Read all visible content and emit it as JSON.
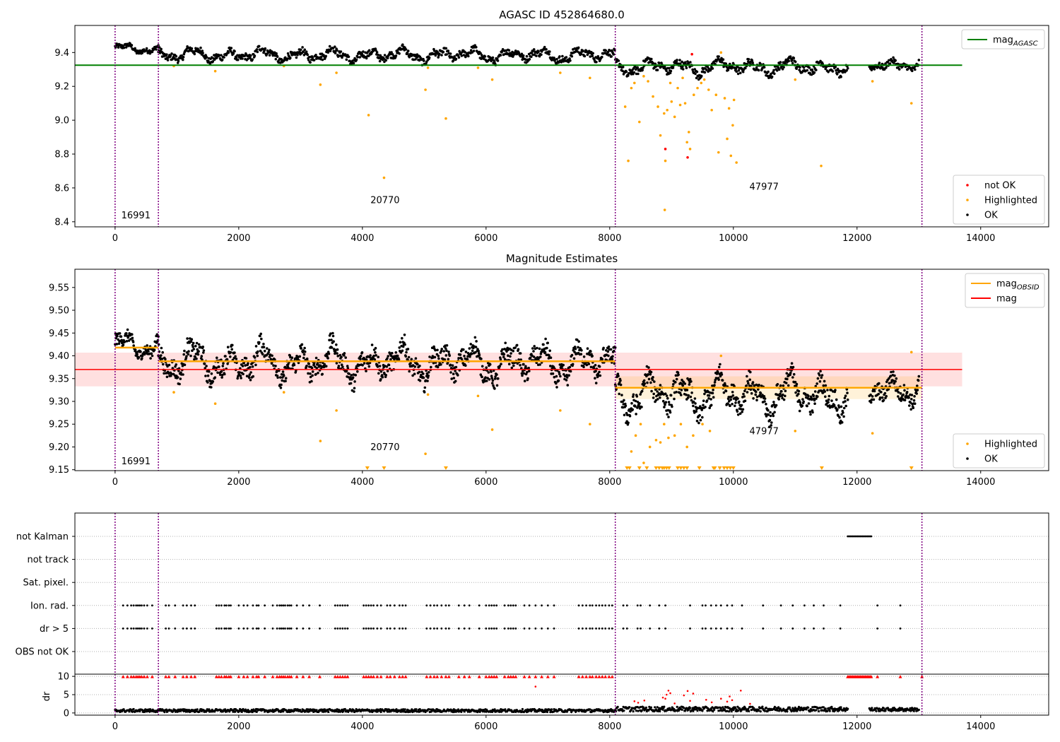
{
  "chart_data": [
    {
      "type": "scatter",
      "title": "AGASC ID 452864680.0",
      "xlim": [
        -650,
        15100
      ],
      "ylim": [
        8.37,
        9.56
      ],
      "xticks": [
        0,
        2000,
        4000,
        6000,
        8000,
        10000,
        12000,
        14000
      ],
      "yticks": [
        8.4,
        8.6,
        8.8,
        9.0,
        9.2,
        9.4
      ],
      "obs_boundaries": [
        0,
        700,
        8090,
        13050
      ],
      "obsid_labels": [
        {
          "text": "16991",
          "x": 100,
          "y": 8.42
        },
        {
          "text": "20770",
          "x": 4130,
          "y": 8.51
        },
        {
          "text": "47977",
          "x": 10260,
          "y": 8.59
        }
      ],
      "hlines": [
        {
          "name": "mag$_{AGASC}$",
          "y": 9.325,
          "x0": -650,
          "x1": 13700,
          "color": "#008000"
        }
      ],
      "ok_segments": [
        {
          "x0": 0,
          "x1": 700,
          "center": 9.42,
          "amp": 0.03
        },
        {
          "x0": 700,
          "x1": 8090,
          "center": 9.385,
          "amp": 0.045
        },
        {
          "x0": 8090,
          "x1": 11850,
          "center": 9.315,
          "amp": 0.05
        },
        {
          "x0": 12200,
          "x1": 13000,
          "center": 9.33,
          "amp": 0.04
        }
      ],
      "highlighted": [
        {
          "x": 950,
          "y": 9.32
        },
        {
          "x": 1620,
          "y": 9.29
        },
        {
          "x": 2730,
          "y": 9.32
        },
        {
          "x": 3320,
          "y": 9.21
        },
        {
          "x": 3580,
          "y": 9.28
        },
        {
          "x": 4100,
          "y": 9.03
        },
        {
          "x": 4350,
          "y": 8.66
        },
        {
          "x": 5020,
          "y": 9.18
        },
        {
          "x": 5060,
          "y": 9.31
        },
        {
          "x": 5350,
          "y": 9.01
        },
        {
          "x": 5870,
          "y": 9.31
        },
        {
          "x": 6100,
          "y": 9.24
        },
        {
          "x": 7200,
          "y": 9.28
        },
        {
          "x": 7680,
          "y": 9.25
        },
        {
          "x": 8250,
          "y": 9.08
        },
        {
          "x": 8300,
          "y": 8.76
        },
        {
          "x": 8350,
          "y": 9.19
        },
        {
          "x": 8400,
          "y": 9.22
        },
        {
          "x": 8480,
          "y": 8.99
        },
        {
          "x": 8550,
          "y": 9.26
        },
        {
          "x": 8620,
          "y": 9.23
        },
        {
          "x": 8700,
          "y": 9.14
        },
        {
          "x": 8780,
          "y": 9.08
        },
        {
          "x": 8820,
          "y": 8.91
        },
        {
          "x": 8880,
          "y": 9.04
        },
        {
          "x": 8900,
          "y": 8.76
        },
        {
          "x": 8930,
          "y": 9.06
        },
        {
          "x": 8980,
          "y": 9.22
        },
        {
          "x": 9000,
          "y": 9.11
        },
        {
          "x": 9050,
          "y": 9.02
        },
        {
          "x": 9100,
          "y": 9.19
        },
        {
          "x": 9140,
          "y": 9.09
        },
        {
          "x": 9180,
          "y": 9.25
        },
        {
          "x": 9220,
          "y": 9.1
        },
        {
          "x": 9250,
          "y": 8.87
        },
        {
          "x": 9280,
          "y": 8.93
        },
        {
          "x": 9300,
          "y": 8.83
        },
        {
          "x": 9360,
          "y": 9.15
        },
        {
          "x": 9420,
          "y": 9.19
        },
        {
          "x": 9480,
          "y": 9.22
        },
        {
          "x": 9530,
          "y": 9.24
        },
        {
          "x": 9600,
          "y": 9.18
        },
        {
          "x": 9650,
          "y": 9.06
        },
        {
          "x": 9720,
          "y": 9.15
        },
        {
          "x": 9760,
          "y": 8.81
        },
        {
          "x": 9800,
          "y": 9.4
        },
        {
          "x": 9860,
          "y": 9.13
        },
        {
          "x": 9900,
          "y": 8.89
        },
        {
          "x": 9930,
          "y": 9.07
        },
        {
          "x": 9960,
          "y": 8.79
        },
        {
          "x": 9990,
          "y": 8.97
        },
        {
          "x": 10010,
          "y": 9.12
        },
        {
          "x": 10050,
          "y": 8.75
        },
        {
          "x": 11000,
          "y": 9.24
        },
        {
          "x": 11420,
          "y": 8.73
        },
        {
          "x": 12250,
          "y": 9.23
        },
        {
          "x": 12880,
          "y": 9.1
        },
        {
          "x": 8890,
          "y": 8.47
        }
      ],
      "not_ok": [
        {
          "x": 9330,
          "y": 9.39
        },
        {
          "x": 8900,
          "y": 8.83
        },
        {
          "x": 9260,
          "y": 8.78
        }
      ],
      "legends": [
        {
          "position": "top-right",
          "entries": [
            {
              "label": "mag$_{AGASC}$",
              "marker": "line",
              "color": "#008000"
            }
          ]
        },
        {
          "position": "bottom-right",
          "entries": [
            {
              "label": "not OK",
              "marker": "dot",
              "color": "#ff0000"
            },
            {
              "label": "Highlighted",
              "marker": "dot",
              "color": "#ffa500"
            },
            {
              "label": "OK",
              "marker": "dot",
              "color": "#000000"
            }
          ]
        }
      ]
    },
    {
      "type": "scatter",
      "title": "Magnitude Estimates",
      "xlim": [
        -650,
        15100
      ],
      "ylim": [
        9.148,
        9.59
      ],
      "xticks": [
        0,
        2000,
        4000,
        6000,
        8000,
        10000,
        12000,
        14000
      ],
      "yticks": [
        9.15,
        9.2,
        9.25,
        9.3,
        9.35,
        9.4,
        9.45,
        9.5,
        9.55
      ],
      "obs_boundaries": [
        0,
        700,
        8090,
        13050
      ],
      "obsid_labels": [
        {
          "text": "16991",
          "x": 100,
          "y": 9.162
        },
        {
          "text": "20770",
          "x": 4130,
          "y": 9.193
        },
        {
          "text": "47977",
          "x": 10260,
          "y": 9.228
        }
      ],
      "mag": {
        "value": 9.37,
        "band": [
          9.333,
          9.407
        ],
        "x0": -650,
        "x1": 13700,
        "color": "#ff0000"
      },
      "mag_obsid": [
        {
          "x0": 0,
          "x1": 700,
          "y": 9.418
        },
        {
          "x0": 700,
          "x1": 8090,
          "y": 9.388
        },
        {
          "x0": 8090,
          "x1": 13050,
          "y": 9.33
        }
      ],
      "mag_obsid_band": [
        9.305,
        9.355
      ],
      "ok_segments": [
        {
          "x0": 0,
          "x1": 700,
          "center": 9.42,
          "amp": 0.03
        },
        {
          "x0": 700,
          "x1": 8090,
          "center": 9.385,
          "amp": 0.045
        },
        {
          "x0": 8090,
          "x1": 11850,
          "center": 9.315,
          "amp": 0.05
        },
        {
          "x0": 12200,
          "x1": 13000,
          "center": 9.33,
          "amp": 0.04
        }
      ],
      "highlighted": [
        {
          "x": 950,
          "y": 9.32
        },
        {
          "x": 1620,
          "y": 9.295
        },
        {
          "x": 2730,
          "y": 9.32
        },
        {
          "x": 3320,
          "y": 9.213
        },
        {
          "x": 3580,
          "y": 9.28
        },
        {
          "x": 5020,
          "y": 9.185
        },
        {
          "x": 5060,
          "y": 9.315
        },
        {
          "x": 5870,
          "y": 9.312
        },
        {
          "x": 6100,
          "y": 9.238
        },
        {
          "x": 7200,
          "y": 9.28
        },
        {
          "x": 7680,
          "y": 9.25
        },
        {
          "x": 8350,
          "y": 9.19
        },
        {
          "x": 8420,
          "y": 9.225
        },
        {
          "x": 8500,
          "y": 9.25
        },
        {
          "x": 8550,
          "y": 9.165
        },
        {
          "x": 8650,
          "y": 9.2
        },
        {
          "x": 8750,
          "y": 9.215
        },
        {
          "x": 8820,
          "y": 9.21
        },
        {
          "x": 8880,
          "y": 9.25
        },
        {
          "x": 8950,
          "y": 9.22
        },
        {
          "x": 9050,
          "y": 9.225
        },
        {
          "x": 9150,
          "y": 9.25
        },
        {
          "x": 9250,
          "y": 9.2
        },
        {
          "x": 9350,
          "y": 9.225
        },
        {
          "x": 9500,
          "y": 9.25
        },
        {
          "x": 9620,
          "y": 9.235
        },
        {
          "x": 9800,
          "y": 9.4
        },
        {
          "x": 11000,
          "y": 9.235
        },
        {
          "x": 12250,
          "y": 9.23
        },
        {
          "x": 12880,
          "y": 9.408
        }
      ],
      "clipped_low": [
        4080,
        4350,
        5350,
        8280,
        8320,
        8480,
        8600,
        8750,
        8800,
        8850,
        8880,
        8920,
        8960,
        9100,
        9150,
        9200,
        9250,
        9450,
        9680,
        9700,
        9780,
        9850,
        9900,
        9950,
        10000,
        11430,
        12880
      ],
      "legends": [
        {
          "position": "top-right",
          "entries": [
            {
              "label": "mag$_{OBSID}$",
              "marker": "line",
              "color": "#ffa500"
            },
            {
              "label": "mag",
              "marker": "line",
              "color": "#ff0000"
            }
          ]
        },
        {
          "position": "bottom-right",
          "entries": [
            {
              "label": "Highlighted",
              "marker": "dot",
              "color": "#ffa500"
            },
            {
              "label": "OK",
              "marker": "dot",
              "color": "#000000"
            }
          ]
        }
      ]
    },
    {
      "type": "scatter",
      "title": "",
      "xlim": [
        -650,
        15100
      ],
      "categories": [
        "not Kalman",
        "not track",
        "Sat. pixel.",
        "Ion. rad.",
        "dr > 5",
        "OBS not OK"
      ],
      "obs_boundaries": [
        0,
        700,
        8090,
        13050
      ],
      "flag_points": {
        "not Kalman": [
          11850,
          11870,
          11890,
          11910,
          11930,
          11950,
          11970,
          11990,
          12010,
          12030,
          12050,
          12070,
          12090,
          12110,
          12130,
          12150,
          12170,
          12190,
          12210,
          12230
        ],
        "Ion. rad.": [
          130,
          200,
          260,
          300,
          340,
          370,
          400,
          430,
          470,
          520,
          600,
          820,
          870,
          970,
          1100,
          1160,
          1230,
          1290,
          1640,
          1680,
          1720,
          1770,
          1800,
          1840,
          1870,
          2000,
          2080,
          2140,
          2230,
          2290,
          2320,
          2420,
          2550,
          2620,
          2660,
          2690,
          2720,
          2750,
          2790,
          2820,
          2850,
          2940,
          3040,
          3140,
          3310,
          3560,
          3600,
          3640,
          3680,
          3720,
          3760,
          4020,
          4060,
          4100,
          4140,
          4180,
          4240,
          4300,
          4400,
          4450,
          4520,
          4600,
          4650,
          4700,
          5040,
          5100,
          5160,
          5210,
          5280,
          5350,
          5400,
          5560,
          5650,
          5730,
          5890,
          6000,
          6050,
          6090,
          6130,
          6170,
          6300,
          6360,
          6400,
          6440,
          6480,
          6620,
          6700,
          6800,
          6900,
          7000,
          7100,
          7500,
          7560,
          7620,
          7680,
          7720,
          7780,
          7830,
          7880,
          7930,
          7990,
          8040,
          8220,
          8280,
          8450,
          8500,
          8650,
          8800,
          8900,
          9300,
          9500,
          9550,
          9640,
          9720,
          9800,
          9900,
          9980,
          10140,
          10480,
          10770,
          10960,
          11150,
          11300,
          11460,
          11730,
          12330,
          12700
        ],
        "dr > 5": [
          130,
          200,
          260,
          300,
          340,
          370,
          400,
          430,
          470,
          520,
          600,
          820,
          870,
          970,
          1100,
          1160,
          1230,
          1290,
          1640,
          1680,
          1720,
          1770,
          1800,
          1840,
          1870,
          2000,
          2080,
          2140,
          2230,
          2290,
          2320,
          2420,
          2550,
          2620,
          2660,
          2690,
          2720,
          2750,
          2790,
          2820,
          2850,
          2940,
          3040,
          3140,
          3310,
          3560,
          3600,
          3640,
          3680,
          3720,
          3760,
          4020,
          4060,
          4100,
          4140,
          4180,
          4240,
          4300,
          4400,
          4450,
          4520,
          4600,
          4650,
          4700,
          5040,
          5100,
          5160,
          5210,
          5280,
          5350,
          5400,
          5560,
          5650,
          5730,
          5890,
          6000,
          6050,
          6090,
          6130,
          6170,
          6300,
          6360,
          6400,
          6440,
          6480,
          6620,
          6700,
          6800,
          6900,
          7000,
          7100,
          7500,
          7560,
          7620,
          7680,
          7720,
          7780,
          7830,
          7880,
          7930,
          7990,
          8040,
          8220,
          8280,
          8450,
          8500,
          8650,
          8800,
          8900,
          9300,
          9500,
          9550,
          9640,
          9720,
          9800,
          9900,
          9980,
          10140,
          10480,
          10770,
          10960,
          11150,
          11300,
          11460,
          11730,
          12330,
          12700
        ]
      }
    },
    {
      "type": "scatter",
      "title": "",
      "xlim": [
        -650,
        15100
      ],
      "ylim": [
        -0.6,
        10.6
      ],
      "yticks": [
        0,
        5,
        10
      ],
      "xticks": [
        0,
        2000,
        4000,
        6000,
        8000,
        10000,
        12000,
        14000
      ],
      "ylabel": "dr",
      "obs_boundaries": [
        0,
        700,
        8090,
        13050
      ],
      "clipped_high": [
        130,
        200,
        260,
        300,
        340,
        370,
        400,
        430,
        470,
        520,
        600,
        820,
        870,
        970,
        1100,
        1160,
        1230,
        1290,
        1640,
        1680,
        1720,
        1770,
        1800,
        1840,
        1870,
        2000,
        2080,
        2140,
        2230,
        2290,
        2320,
        2420,
        2550,
        2620,
        2660,
        2690,
        2720,
        2750,
        2790,
        2820,
        2850,
        2940,
        3040,
        3140,
        3310,
        3560,
        3600,
        3640,
        3680,
        3720,
        3760,
        4020,
        4060,
        4100,
        4140,
        4180,
        4240,
        4300,
        4400,
        4450,
        4520,
        4600,
        4650,
        4700,
        5040,
        5100,
        5160,
        5210,
        5280,
        5350,
        5400,
        5560,
        5650,
        5730,
        5890,
        6000,
        6050,
        6090,
        6130,
        6170,
        6300,
        6360,
        6400,
        6440,
        6480,
        6620,
        6700,
        6800,
        6900,
        7000,
        7100,
        7500,
        7560,
        7620,
        7680,
        7720,
        7780,
        7830,
        7880,
        7930,
        7990,
        8040,
        11850,
        11870,
        11890,
        11910,
        11930,
        11950,
        11970,
        11990,
        12010,
        12030,
        12050,
        12070,
        12090,
        12110,
        12130,
        12150,
        12170,
        12190,
        12210,
        12230,
        12330,
        12700,
        13050
      ],
      "dr_outliers": [
        {
          "x": 6800,
          "y": 7.2
        },
        {
          "x": 8400,
          "y": 3.2
        },
        {
          "x": 8460,
          "y": 2.8
        },
        {
          "x": 8560,
          "y": 3.4
        },
        {
          "x": 8860,
          "y": 4.2
        },
        {
          "x": 8900,
          "y": 3.9
        },
        {
          "x": 8920,
          "y": 5.0
        },
        {
          "x": 8950,
          "y": 6.1
        },
        {
          "x": 8980,
          "y": 5.4
        },
        {
          "x": 9050,
          "y": 2.6
        },
        {
          "x": 9200,
          "y": 4.8
        },
        {
          "x": 9260,
          "y": 6.0
        },
        {
          "x": 9300,
          "y": 3.3
        },
        {
          "x": 9350,
          "y": 5.3
        },
        {
          "x": 9560,
          "y": 3.6
        },
        {
          "x": 9650,
          "y": 2.9
        },
        {
          "x": 9800,
          "y": 3.9
        },
        {
          "x": 9900,
          "y": 3.1
        },
        {
          "x": 9940,
          "y": 4.5
        },
        {
          "x": 9980,
          "y": 3.5
        },
        {
          "x": 10120,
          "y": 6.1
        },
        {
          "x": 10270,
          "y": 2.5
        }
      ],
      "dr_segments": [
        {
          "x0": 0,
          "x1": 8090,
          "center": 0.6,
          "amp": 0.5
        },
        {
          "x0": 8090,
          "x1": 11850,
          "center": 1.0,
          "amp": 0.8
        },
        {
          "x0": 12200,
          "x1": 13000,
          "center": 0.9,
          "amp": 0.6
        }
      ]
    }
  ]
}
